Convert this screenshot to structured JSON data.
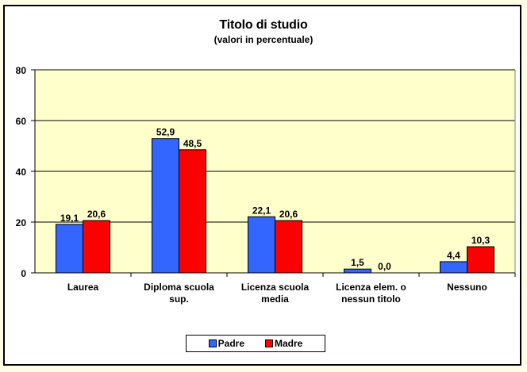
{
  "chart_data": {
    "type": "bar",
    "title": "Titolo di studio",
    "subtitle": "(valori in percentuale)",
    "xlabel": "",
    "ylabel": "",
    "ylim": [
      0,
      80
    ],
    "yticks": [
      0,
      20,
      40,
      60,
      80
    ],
    "grid": true,
    "legend_position": "bottom",
    "categories": [
      "Laurea",
      "Diploma scuola sup.",
      "Licenza scuola media",
      "Licenza elem. o nessun titolo",
      "Nessuno"
    ],
    "category_label_lines": [
      [
        "Laurea"
      ],
      [
        "Diploma scuola",
        "sup."
      ],
      [
        "Licenza scuola",
        "media"
      ],
      [
        "Licenza elem. o",
        "nessun titolo"
      ],
      [
        "Nessuno"
      ]
    ],
    "series": [
      {
        "name": "Padre",
        "color": "#3366ff",
        "values": [
          19.1,
          52.9,
          22.1,
          1.5,
          4.4
        ],
        "labels": [
          "19,1",
          "52,9",
          "22,1",
          "1,5",
          "4,4"
        ]
      },
      {
        "name": "Madre",
        "color": "#ff0000",
        "values": [
          20.6,
          48.5,
          20.6,
          0.0,
          10.3
        ],
        "labels": [
          "20,6",
          "48,5",
          "20,6",
          "0,0",
          "10,3"
        ]
      }
    ],
    "plot_background": "#ffffcc"
  },
  "legend": {
    "items": [
      {
        "label": "Padre",
        "color": "#3366ff"
      },
      {
        "label": "Madre",
        "color": "#ff0000"
      }
    ]
  }
}
